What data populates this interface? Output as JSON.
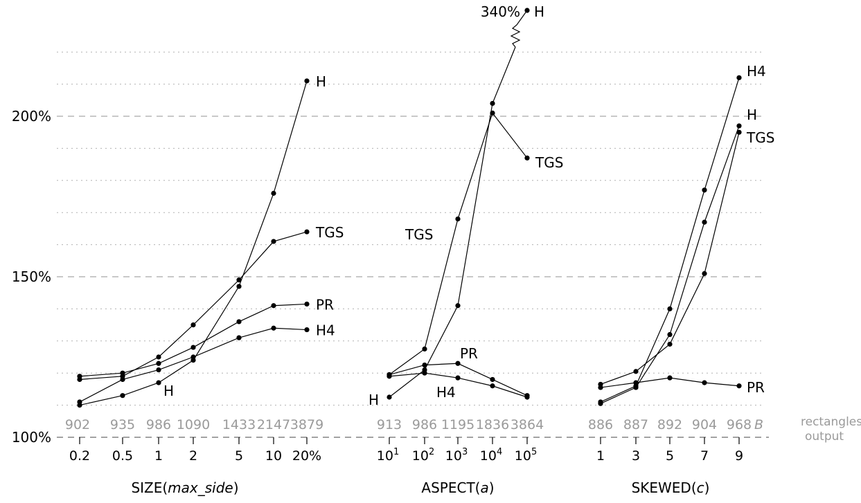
{
  "chart_data": [
    {
      "type": "line",
      "title": "SIZE(max_side)",
      "title_main": "SIZE(",
      "title_var": "max_side",
      "title_end": ")",
      "categories": [
        "0.2",
        "0.5",
        "1",
        "2",
        "5",
        "10",
        "20%"
      ],
      "rectangles_output": [
        "902",
        "935",
        "986",
        "1090",
        "1433",
        "2147",
        "3879"
      ],
      "series": [
        {
          "name": "H",
          "values": [
            110,
            113,
            117,
            124,
            147,
            176,
            211
          ]
        },
        {
          "name": "TGS",
          "values": [
            118,
            119,
            125,
            135,
            149,
            161,
            164
          ]
        },
        {
          "name": "PR",
          "values": [
            119,
            120,
            123,
            128,
            136,
            141,
            141.5
          ]
        },
        {
          "name": "H4",
          "values": [
            111,
            118,
            121,
            125,
            131,
            134,
            133.5
          ]
        }
      ]
    },
    {
      "type": "line",
      "title": "ASPECT(a)",
      "title_main": "ASPECT(",
      "title_var": "a",
      "title_end": ")",
      "categories": [
        "10^1",
        "10^2",
        "10^3",
        "10^4",
        "10^5"
      ],
      "category_labels": [
        {
          "base": "10",
          "exp": "1"
        },
        {
          "base": "10",
          "exp": "2"
        },
        {
          "base": "10",
          "exp": "3"
        },
        {
          "base": "10",
          "exp": "4"
        },
        {
          "base": "10",
          "exp": "5"
        }
      ],
      "rectangles_output": [
        "913",
        "986",
        "1195",
        "1836",
        "3864"
      ],
      "series": [
        {
          "name": "H",
          "values": [
            112.5,
            121,
            141,
            204,
            340
          ]
        },
        {
          "name": "TGS",
          "values": [
            119.5,
            127.5,
            168,
            201,
            187
          ]
        },
        {
          "name": "PR",
          "values": [
            119.5,
            122.5,
            123,
            118,
            113
          ]
        },
        {
          "name": "H4",
          "values": [
            119,
            120,
            118.5,
            116,
            112.5
          ]
        }
      ],
      "break_label": "340%"
    },
    {
      "type": "line",
      "title": "SKEWED(c)",
      "title_main": "SKEWED(",
      "title_var": "c",
      "title_end": ")",
      "categories": [
        "1",
        "3",
        "5",
        "7",
        "9"
      ],
      "rectangles_output": [
        "886",
        "887",
        "892",
        "904",
        "968"
      ],
      "rectangles_output_suffix": "B",
      "series": [
        {
          "name": "H4",
          "values": [
            111,
            116,
            140,
            177,
            212
          ]
        },
        {
          "name": "H",
          "values": [
            110.5,
            115.5,
            132,
            167,
            197
          ]
        },
        {
          "name": "TGS",
          "values": [
            116.5,
            120.5,
            129,
            151,
            195
          ]
        },
        {
          "name": "PR",
          "values": [
            115.5,
            117,
            118.5,
            117,
            116
          ]
        }
      ]
    }
  ],
  "y_axis": {
    "ylim": [
      100,
      230
    ],
    "ticks": [
      {
        "value": 100,
        "label": "100%"
      },
      {
        "value": 150,
        "label": "150%"
      },
      {
        "value": 200,
        "label": "200%"
      }
    ],
    "dashed_major": [
      150,
      200
    ],
    "dotted_minor": [
      110,
      120,
      130,
      140,
      160,
      170,
      180,
      190,
      210,
      220
    ]
  },
  "side_labels": {
    "line1": "rectangles",
    "line2": "output"
  }
}
